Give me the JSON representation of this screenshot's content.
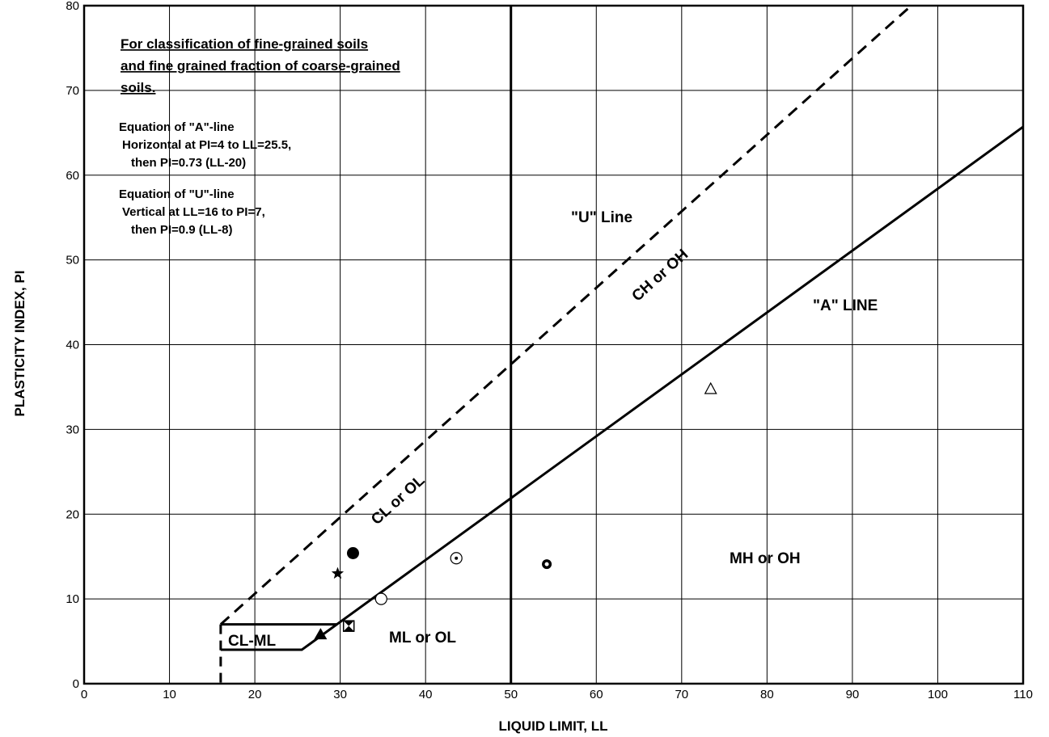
{
  "chart_data": {
    "type": "scatter",
    "xlabel": "LIQUID LIMIT, LL",
    "ylabel": "PLASTICITY INDEX, PI",
    "xlim": [
      0,
      110
    ],
    "ylim": [
      0,
      80
    ],
    "xticks": [
      0,
      10,
      20,
      30,
      40,
      50,
      60,
      70,
      80,
      90,
      100,
      110
    ],
    "yticks": [
      0,
      10,
      20,
      30,
      40,
      50,
      60,
      70,
      80
    ],
    "grid": true,
    "notes": {
      "title_lines": [
        "For classification of fine-grained soils",
        "and fine grained fraction of coarse-grained",
        "soils."
      ],
      "a_line_eq": [
        "Equation of \"A\"-line",
        "Horizontal at PI=4 to LL=25.5,",
        "then PI=0.73 (LL-20)"
      ],
      "u_line_eq": [
        "Equation of \"U\"-line",
        "Vertical at LL=16 to PI=7,",
        "then PI=0.9 (LL-8)"
      ]
    },
    "lines": {
      "a_line_label": "\"A\" LINE",
      "u_line_label": "\"U\" Line"
    },
    "zones": {
      "ch_oh": "CH or OH",
      "cl_ol": "CL or OL",
      "mh_oh": "MH or OH",
      "ml_ol": "ML or OL",
      "cl_ml": "CL-ML"
    },
    "points": [
      {
        "marker": "filled-circle",
        "x": 31.5,
        "y": 15.4
      },
      {
        "marker": "star",
        "x": 29.7,
        "y": 13.0
      },
      {
        "marker": "circle-dot",
        "x": 43.6,
        "y": 14.8
      },
      {
        "marker": "open-circle",
        "x": 34.8,
        "y": 10.0
      },
      {
        "marker": "flower",
        "x": 54.2,
        "y": 14.1
      },
      {
        "marker": "open-triangle",
        "x": 73.4,
        "y": 34.8
      },
      {
        "marker": "filled-triangle",
        "x": 27.7,
        "y": 5.8
      },
      {
        "marker": "hourglass-square",
        "x": 31.0,
        "y": 6.8
      }
    ]
  }
}
